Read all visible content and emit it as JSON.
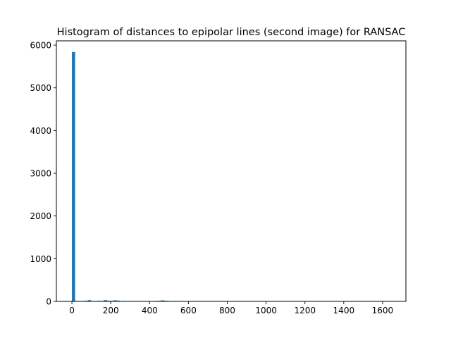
{
  "chart_data": {
    "type": "bar",
    "title": "Histogram of distances to epipolar lines (second image) for RANSAC",
    "xlabel": "",
    "ylabel": "",
    "xlim": [
      -80,
      1720
    ],
    "ylim": [
      0,
      6100
    ],
    "grid": false,
    "bar_color": "#1f77b4",
    "x_ticks": [
      0,
      200,
      400,
      600,
      800,
      1000,
      1200,
      1400,
      1600
    ],
    "y_ticks": [
      0,
      1000,
      2000,
      3000,
      4000,
      5000,
      6000
    ],
    "x_tick_labels": [
      "0",
      "200",
      "400",
      "600",
      "800",
      "1000",
      "1200",
      "1400",
      "1600"
    ],
    "y_tick_labels": [
      "0",
      "1000",
      "2000",
      "3000",
      "4000",
      "5000",
      "6000"
    ],
    "bin_width": 16.4,
    "bins": [
      {
        "x": 0.0,
        "value": 5840
      },
      {
        "x": 16.4,
        "value": 12
      },
      {
        "x": 32.8,
        "value": 8
      },
      {
        "x": 49.2,
        "value": 10
      },
      {
        "x": 65.6,
        "value": 14
      },
      {
        "x": 82.0,
        "value": 28
      },
      {
        "x": 98.4,
        "value": 10
      },
      {
        "x": 114.8,
        "value": 8
      },
      {
        "x": 131.2,
        "value": 12
      },
      {
        "x": 147.6,
        "value": 10
      },
      {
        "x": 164.0,
        "value": 30
      },
      {
        "x": 180.4,
        "value": 14
      },
      {
        "x": 196.8,
        "value": 12
      },
      {
        "x": 213.2,
        "value": 26
      },
      {
        "x": 229.6,
        "value": 18
      },
      {
        "x": 246.0,
        "value": 8
      },
      {
        "x": 262.4,
        "value": 10
      },
      {
        "x": 278.8,
        "value": 8
      },
      {
        "x": 295.2,
        "value": 6
      },
      {
        "x": 311.6,
        "value": 8
      },
      {
        "x": 328.0,
        "value": 6
      },
      {
        "x": 344.4,
        "value": 8
      },
      {
        "x": 360.8,
        "value": 6
      },
      {
        "x": 377.2,
        "value": 8
      },
      {
        "x": 393.6,
        "value": 6
      },
      {
        "x": 410.0,
        "value": 4
      },
      {
        "x": 426.4,
        "value": 10
      },
      {
        "x": 442.8,
        "value": 14
      },
      {
        "x": 459.2,
        "value": 24
      },
      {
        "x": 475.6,
        "value": 14
      },
      {
        "x": 492.0,
        "value": 10
      },
      {
        "x": 508.4,
        "value": 8
      },
      {
        "x": 524.8,
        "value": 10
      },
      {
        "x": 541.2,
        "value": 8
      },
      {
        "x": 557.6,
        "value": 6
      },
      {
        "x": 574.0,
        "value": 8
      },
      {
        "x": 590.4,
        "value": 4
      },
      {
        "x": 623.2,
        "value": 6
      },
      {
        "x": 656.0,
        "value": 8
      },
      {
        "x": 721.6,
        "value": 4
      }
    ]
  }
}
